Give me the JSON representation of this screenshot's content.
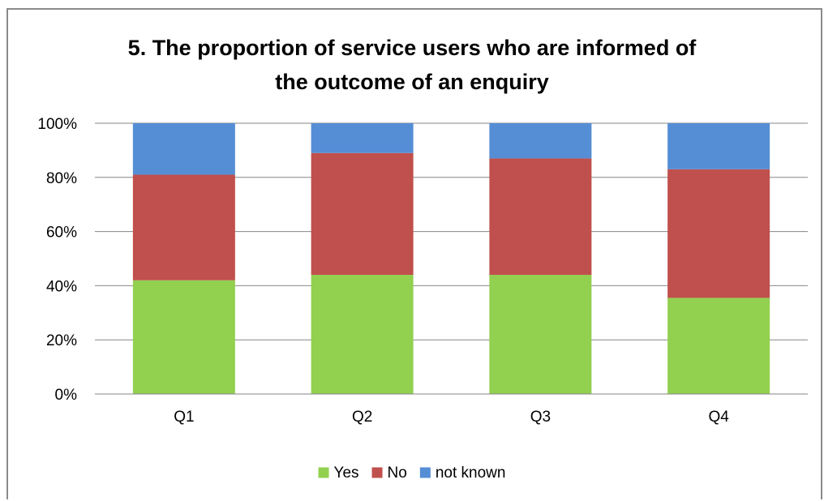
{
  "chart_data": {
    "type": "bar",
    "stacked": true,
    "percent_scale": true,
    "title_lines": [
      "5. The proportion of service users who are informed of",
      "the outcome of an enquiry"
    ],
    "categories": [
      "Q1",
      "Q2",
      "Q3",
      "Q4"
    ],
    "series": [
      {
        "name": "Yes",
        "color": "#92d050",
        "values": [
          42,
          44,
          44,
          35.5
        ]
      },
      {
        "name": "No",
        "color": "#c0504d",
        "values": [
          39,
          45,
          43,
          47.5
        ]
      },
      {
        "name": "not known",
        "color": "#558ed5",
        "values": [
          19,
          11,
          13,
          17
        ]
      }
    ],
    "ylim": [
      0,
      100
    ],
    "yticks": [
      "0%",
      "20%",
      "40%",
      "60%",
      "80%",
      "100%"
    ],
    "grid": true,
    "legend_position": "bottom"
  }
}
